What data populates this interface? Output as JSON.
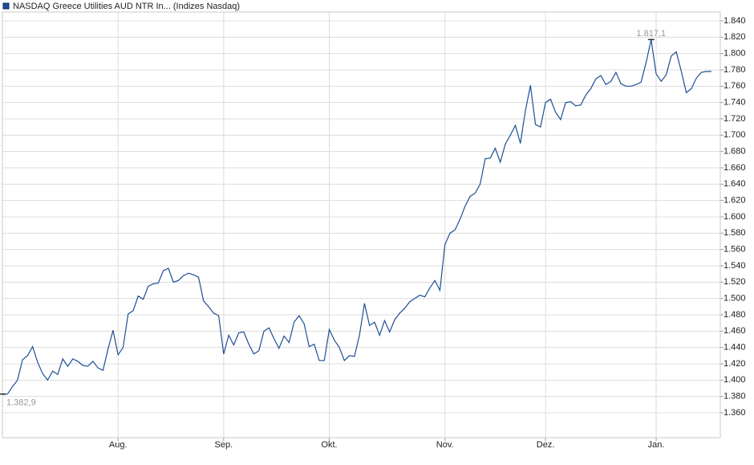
{
  "chart_data": {
    "type": "line",
    "title": "NASDAQ Greece Utilities AUD NTR In... (Indizes Nasdaq)",
    "categories": [
      null,
      null,
      null,
      null,
      null,
      null,
      null,
      null,
      null,
      null,
      null,
      null,
      null,
      null,
      null,
      null,
      null,
      null,
      null,
      null,
      null,
      null,
      null,
      "Aug.",
      null,
      null,
      null,
      null,
      null,
      null,
      null,
      null,
      null,
      null,
      null,
      null,
      null,
      null,
      null,
      null,
      null,
      null,
      null,
      null,
      "Sep.",
      null,
      null,
      null,
      null,
      null,
      null,
      null,
      null,
      null,
      null,
      null,
      null,
      null,
      null,
      null,
      null,
      null,
      null,
      null,
      null,
      "Okt.",
      null,
      null,
      null,
      null,
      null,
      null,
      null,
      null,
      null,
      null,
      null,
      null,
      null,
      null,
      null,
      null,
      null,
      null,
      null,
      null,
      null,
      null,
      "Nov.",
      null,
      null,
      null,
      null,
      null,
      null,
      null,
      null,
      null,
      null,
      null,
      null,
      null,
      null,
      null,
      null,
      null,
      null,
      null,
      "Dez.",
      null,
      null,
      null,
      null,
      null,
      null,
      null,
      null,
      null,
      null,
      null,
      null,
      null,
      null,
      null,
      null,
      null,
      null,
      null,
      null,
      null,
      "Jan.",
      null,
      null,
      null,
      null,
      null,
      null,
      null,
      null,
      null,
      null,
      null
    ],
    "series": [
      {
        "name": "NASDAQ Greece Utilities AUD NTR In...",
        "color": "#1c4f94",
        "values": [
          1.3829,
          1.3829,
          1.392,
          1.4,
          1.425,
          1.43,
          1.441,
          1.422,
          1.408,
          1.4,
          1.411,
          1.407,
          1.426,
          1.417,
          1.426,
          1.423,
          1.418,
          1.417,
          1.423,
          1.415,
          1.412,
          1.438,
          1.461,
          1.431,
          1.44,
          1.481,
          1.485,
          1.503,
          1.499,
          1.515,
          1.518,
          1.519,
          1.534,
          1.537,
          1.52,
          1.522,
          1.528,
          1.531,
          1.529,
          1.526,
          1.497,
          1.49,
          1.482,
          1.479,
          1.432,
          1.455,
          1.443,
          1.458,
          1.459,
          1.444,
          1.432,
          1.436,
          1.46,
          1.464,
          1.451,
          1.439,
          1.454,
          1.446,
          1.471,
          1.479,
          1.469,
          1.441,
          1.444,
          1.424,
          1.424,
          1.462,
          1.449,
          1.44,
          1.424,
          1.43,
          1.429,
          1.455,
          1.494,
          1.467,
          1.471,
          1.455,
          1.473,
          1.459,
          1.474,
          1.482,
          1.488,
          1.496,
          1.5,
          1.504,
          1.502,
          1.513,
          1.522,
          1.51,
          1.566,
          1.58,
          1.584,
          1.597,
          1.613,
          1.625,
          1.629,
          1.64,
          1.671,
          1.672,
          1.684,
          1.667,
          1.689,
          1.7,
          1.712,
          1.69,
          1.73,
          1.761,
          1.713,
          1.71,
          1.74,
          1.744,
          1.728,
          1.719,
          1.74,
          1.741,
          1.736,
          1.737,
          1.749,
          1.757,
          1.769,
          1.773,
          1.762,
          1.766,
          1.777,
          1.763,
          1.76,
          1.76,
          1.762,
          1.765,
          1.789,
          1.8171,
          1.775,
          1.766,
          1.774,
          1.797,
          1.802,
          1.778,
          1.752,
          1.757,
          1.77,
          1.777,
          1.778,
          1.778
        ]
      }
    ],
    "annotations": [
      {
        "value": 1.3829,
        "label": "1.382,9"
      },
      {
        "value": 1.8171,
        "label": "1.817,1"
      }
    ],
    "ylim": [
      1.3295,
      1.8508
    ],
    "yticks": [
      {
        "value": 1.36,
        "label": "1.360"
      },
      {
        "value": 1.38,
        "label": "1.380"
      },
      {
        "value": 1.4,
        "label": "1.400"
      },
      {
        "value": 1.42,
        "label": "1.420"
      },
      {
        "value": 1.44,
        "label": "1.440"
      },
      {
        "value": 1.46,
        "label": "1.460"
      },
      {
        "value": 1.48,
        "label": "1.480"
      },
      {
        "value": 1.5,
        "label": "1.500"
      },
      {
        "value": 1.52,
        "label": "1.520"
      },
      {
        "value": 1.54,
        "label": "1.540"
      },
      {
        "value": 1.56,
        "label": "1.560"
      },
      {
        "value": 1.58,
        "label": "1.580"
      },
      {
        "value": 1.6,
        "label": "1.600"
      },
      {
        "value": 1.62,
        "label": "1.620"
      },
      {
        "value": 1.64,
        "label": "1.640"
      },
      {
        "value": 1.66,
        "label": "1.660"
      },
      {
        "value": 1.68,
        "label": "1.680"
      },
      {
        "value": 1.7,
        "label": "1.700"
      },
      {
        "value": 1.72,
        "label": "1.720"
      },
      {
        "value": 1.74,
        "label": "1.740"
      },
      {
        "value": 1.76,
        "label": "1.760"
      },
      {
        "value": 1.78,
        "label": "1.780"
      },
      {
        "value": 1.8,
        "label": "1.800"
      },
      {
        "value": 1.82,
        "label": "1.820"
      },
      {
        "value": 1.84,
        "label": "1.840"
      }
    ],
    "grid": true
  }
}
